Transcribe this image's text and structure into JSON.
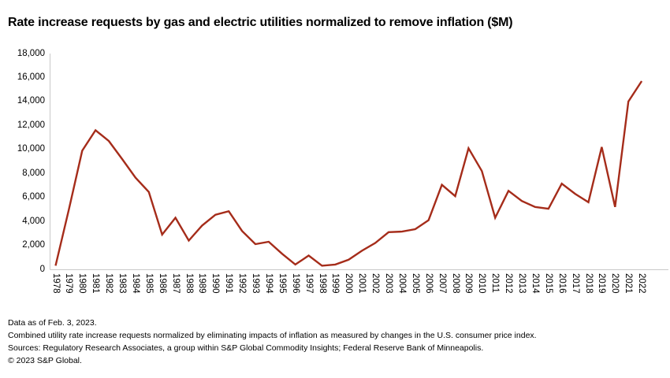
{
  "title": "Rate increase requests by gas and electric utilities normalized to remove inflation ($M)",
  "footer": {
    "line1": "Data as of Feb. 3, 2023.",
    "line2": "Combined utility rate increase requests normalized by eliminating impacts of inflation as measured by changes in the U.S. consumer price index.",
    "line3": "Sources: Regulatory Research Associates, a group within S&P Global Commodity Insights; Federal Reserve Bank of Minneapolis.",
    "line4": "© 2023 S&P Global."
  },
  "chart_data": {
    "type": "line",
    "title": "Rate increase requests by gas and electric utilities normalized to remove inflation ($M)",
    "categories": [
      "1978",
      "1979",
      "1980",
      "1981",
      "1982",
      "1983",
      "1984",
      "1985",
      "1986",
      "1987",
      "1988",
      "1989",
      "1990",
      "1991",
      "1992",
      "1993",
      "1994",
      "1995",
      "1996",
      "1997",
      "1998",
      "1999",
      "2000",
      "2001",
      "2002",
      "2003",
      "2004",
      "2005",
      "2006",
      "2007",
      "2008",
      "2009",
      "2010",
      "2011",
      "2012",
      "2013",
      "2014",
      "2015",
      "2016",
      "2017",
      "2018",
      "2019",
      "2020",
      "2021",
      "2022"
    ],
    "values": [
      300,
      5000,
      9900,
      11600,
      10700,
      9200,
      7650,
      6450,
      2900,
      4300,
      2400,
      3650,
      4550,
      4850,
      3200,
      2100,
      2300,
      1300,
      400,
      1150,
      300,
      400,
      800,
      1550,
      2200,
      3100,
      3150,
      3350,
      4100,
      7050,
      6100,
      10100,
      8200,
      4300,
      6550,
      5700,
      5200,
      5050,
      7150,
      6300,
      5600,
      10200,
      5200,
      14000,
      15700
    ],
    "xlabel": "",
    "ylabel": "",
    "ylim": [
      0,
      18000
    ],
    "ytick_step": 2000,
    "ytick_labels": [
      "0",
      "2,000",
      "4,000",
      "6,000",
      "8,000",
      "10,000",
      "12,000",
      "14,000",
      "16,000",
      "18,000"
    ],
    "grid": false,
    "legend": "none",
    "line_color": "#a52c1a",
    "axis_color": "#c9c9c9",
    "text_color": "#000000"
  }
}
